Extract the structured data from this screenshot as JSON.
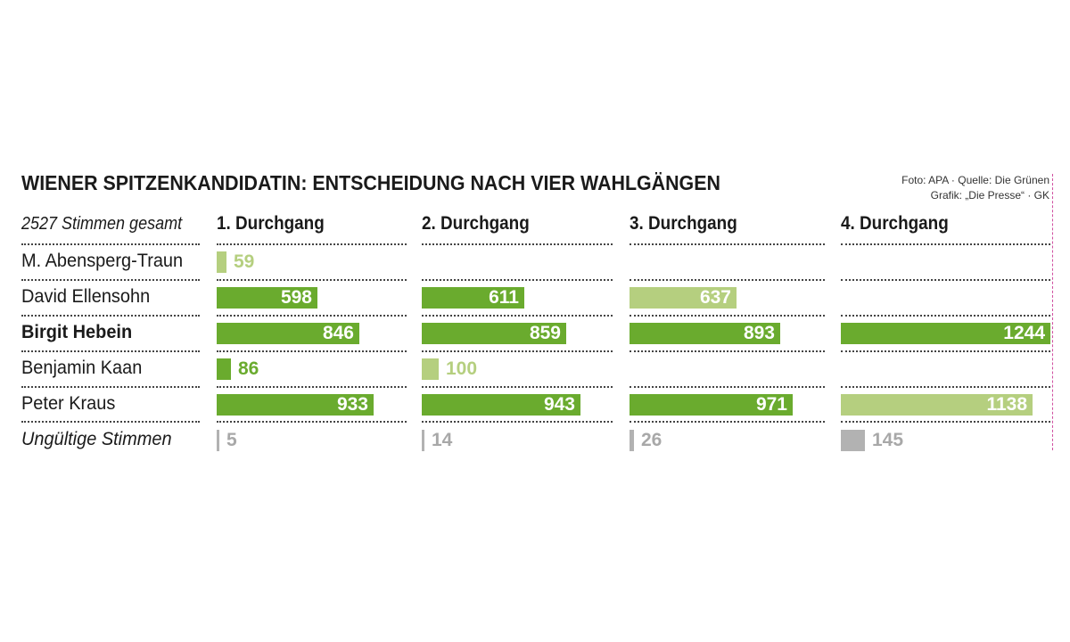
{
  "header": {
    "title": "WIENER SPITZENKANDIDATIN: ENTSCHEIDUNG NACH VIER WAHLGÄNGEN",
    "source_line1": "Foto: APA · Quelle: Die Grünen",
    "source_line2": "Grafik: „Die Presse“ · GK",
    "total_label": "2527 Stimmen gesamt"
  },
  "colors": {
    "dark_green": "#6aab2e",
    "light_green": "#b5cf7f",
    "gray": "#b2b2b2",
    "label_on_dark": "#ffffff",
    "label_light_green": "#b5cf7f",
    "label_dark_green": "#6aab2e",
    "label_gray": "#a8a8a8"
  },
  "chart_data": {
    "type": "bar",
    "title": "WIENER SPITZENKANDIDATIN: ENTSCHEIDUNG NACH VIER WAHLGÄNGEN",
    "rounds": [
      "1. Durchgang",
      "2. Durchgang",
      "3. Durchgang",
      "4. Durchgang"
    ],
    "categories": [
      "M. Abensperg-Traun",
      "David Ellensohn",
      "Birgit Hebein",
      "Benjamin Kaan",
      "Peter Kraus",
      "Ungültige Stimmen"
    ],
    "series": [
      {
        "name": "1. Durchgang",
        "values": [
          59,
          598,
          846,
          86,
          933,
          5
        ],
        "styles": [
          "light",
          "dark",
          "dark",
          "dark",
          "dark",
          "gray"
        ]
      },
      {
        "name": "2. Durchgang",
        "values": [
          null,
          611,
          859,
          100,
          943,
          14
        ],
        "styles": [
          null,
          "dark",
          "dark",
          "light",
          "dark",
          "gray"
        ]
      },
      {
        "name": "3. Durchgang",
        "values": [
          null,
          637,
          893,
          null,
          971,
          26
        ],
        "styles": [
          null,
          "light",
          "dark",
          null,
          "dark",
          "gray"
        ]
      },
      {
        "name": "4. Durchgang",
        "values": [
          null,
          null,
          1244,
          null,
          1138,
          145
        ],
        "styles": [
          null,
          null,
          "dark",
          null,
          "light",
          "gray"
        ]
      }
    ],
    "xlim": [
      0,
      1244
    ],
    "highlight_category": "Birgit Hebein"
  }
}
